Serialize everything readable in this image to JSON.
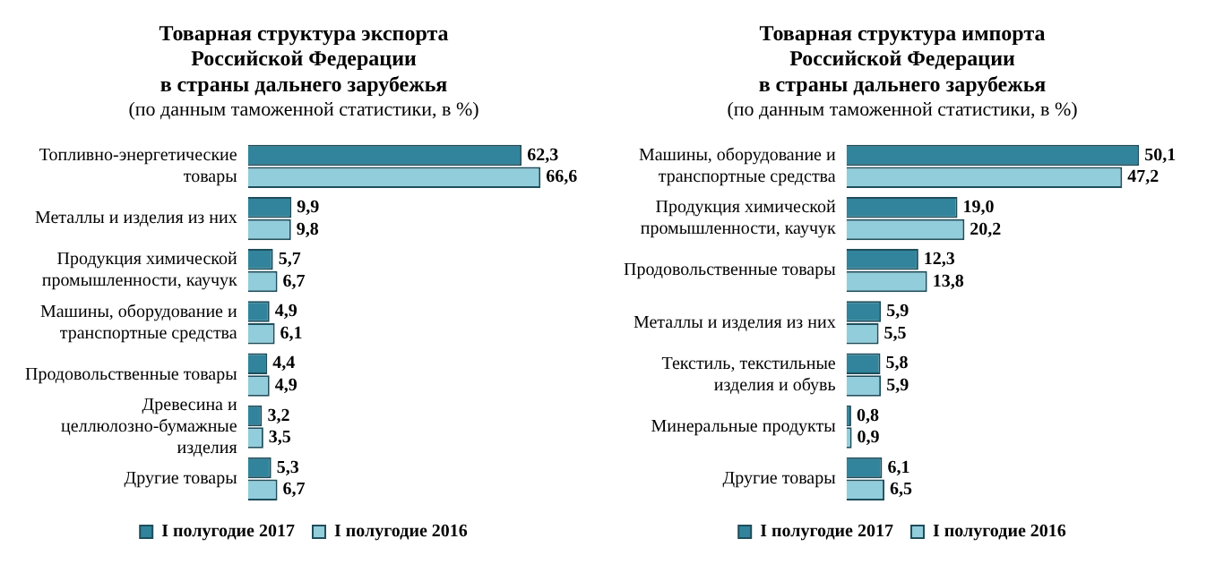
{
  "chart_data": [
    {
      "type": "bar",
      "orientation": "horizontal",
      "title": "Товарная структура экспорта\nРоссийской Федерации\nв страны дальнего зарубежья",
      "subtitle": "(по данным таможенной статистики, в %)",
      "categories": [
        "Топливно-энергетические товары",
        "Металлы и изделия из них",
        "Продукция химической промышленности, каучук",
        "Машины, оборудование и транспортные средства",
        "Продовольственные товары",
        "Древесина и целлюлозно-бумажные изделия",
        "Другие товары"
      ],
      "series": [
        {
          "name": "I полугодие 2017",
          "color": "#31849b",
          "values": [
            62.3,
            9.9,
            5.7,
            4.9,
            4.4,
            3.2,
            5.3
          ],
          "value_labels": [
            "62,3",
            "9,9",
            "5,7",
            "4,9",
            "4,4",
            "3,2",
            "5,3"
          ]
        },
        {
          "name": "I полугодие 2016",
          "color": "#92cddc",
          "values": [
            66.6,
            9.8,
            6.7,
            6.1,
            4.9,
            3.5,
            6.7
          ],
          "value_labels": [
            "66,6",
            "9,8",
            "6,7",
            "6,1",
            "4,9",
            "3,5",
            "6,7"
          ]
        }
      ],
      "legend": "bottom",
      "grid": false,
      "tick_labels": "y"
    },
    {
      "type": "bar",
      "orientation": "horizontal",
      "title": "Товарная структура импорта\nРоссийской Федерации\nв страны дальнего зарубежья",
      "subtitle": "(по данным таможенной статистики, в %)",
      "categories": [
        "Машины, оборудование и транспортные средства",
        "Продукция химической промышленности, каучук",
        "Продовольственные товары",
        "Металлы и изделия из них",
        "Текстиль, текстильные изделия и обувь",
        "Минеральные продукты",
        "Другие товары"
      ],
      "series": [
        {
          "name": "I полугодие 2017",
          "color": "#31849b",
          "values": [
            50.1,
            19.0,
            12.3,
            5.9,
            5.8,
            0.8,
            6.1
          ],
          "value_labels": [
            "50,1",
            "19,0",
            "12,3",
            "5,9",
            "5,8",
            "0,8",
            "6,1"
          ]
        },
        {
          "name": "I полугодие 2016",
          "color": "#92cddc",
          "values": [
            47.2,
            20.2,
            13.8,
            5.5,
            5.9,
            0.9,
            6.5
          ],
          "value_labels": [
            "47,2",
            "20,2",
            "13,8",
            "5,5",
            "5,9",
            "0,9",
            "6,5"
          ]
        }
      ],
      "legend": "bottom",
      "grid": false,
      "tick_labels": "y"
    }
  ]
}
